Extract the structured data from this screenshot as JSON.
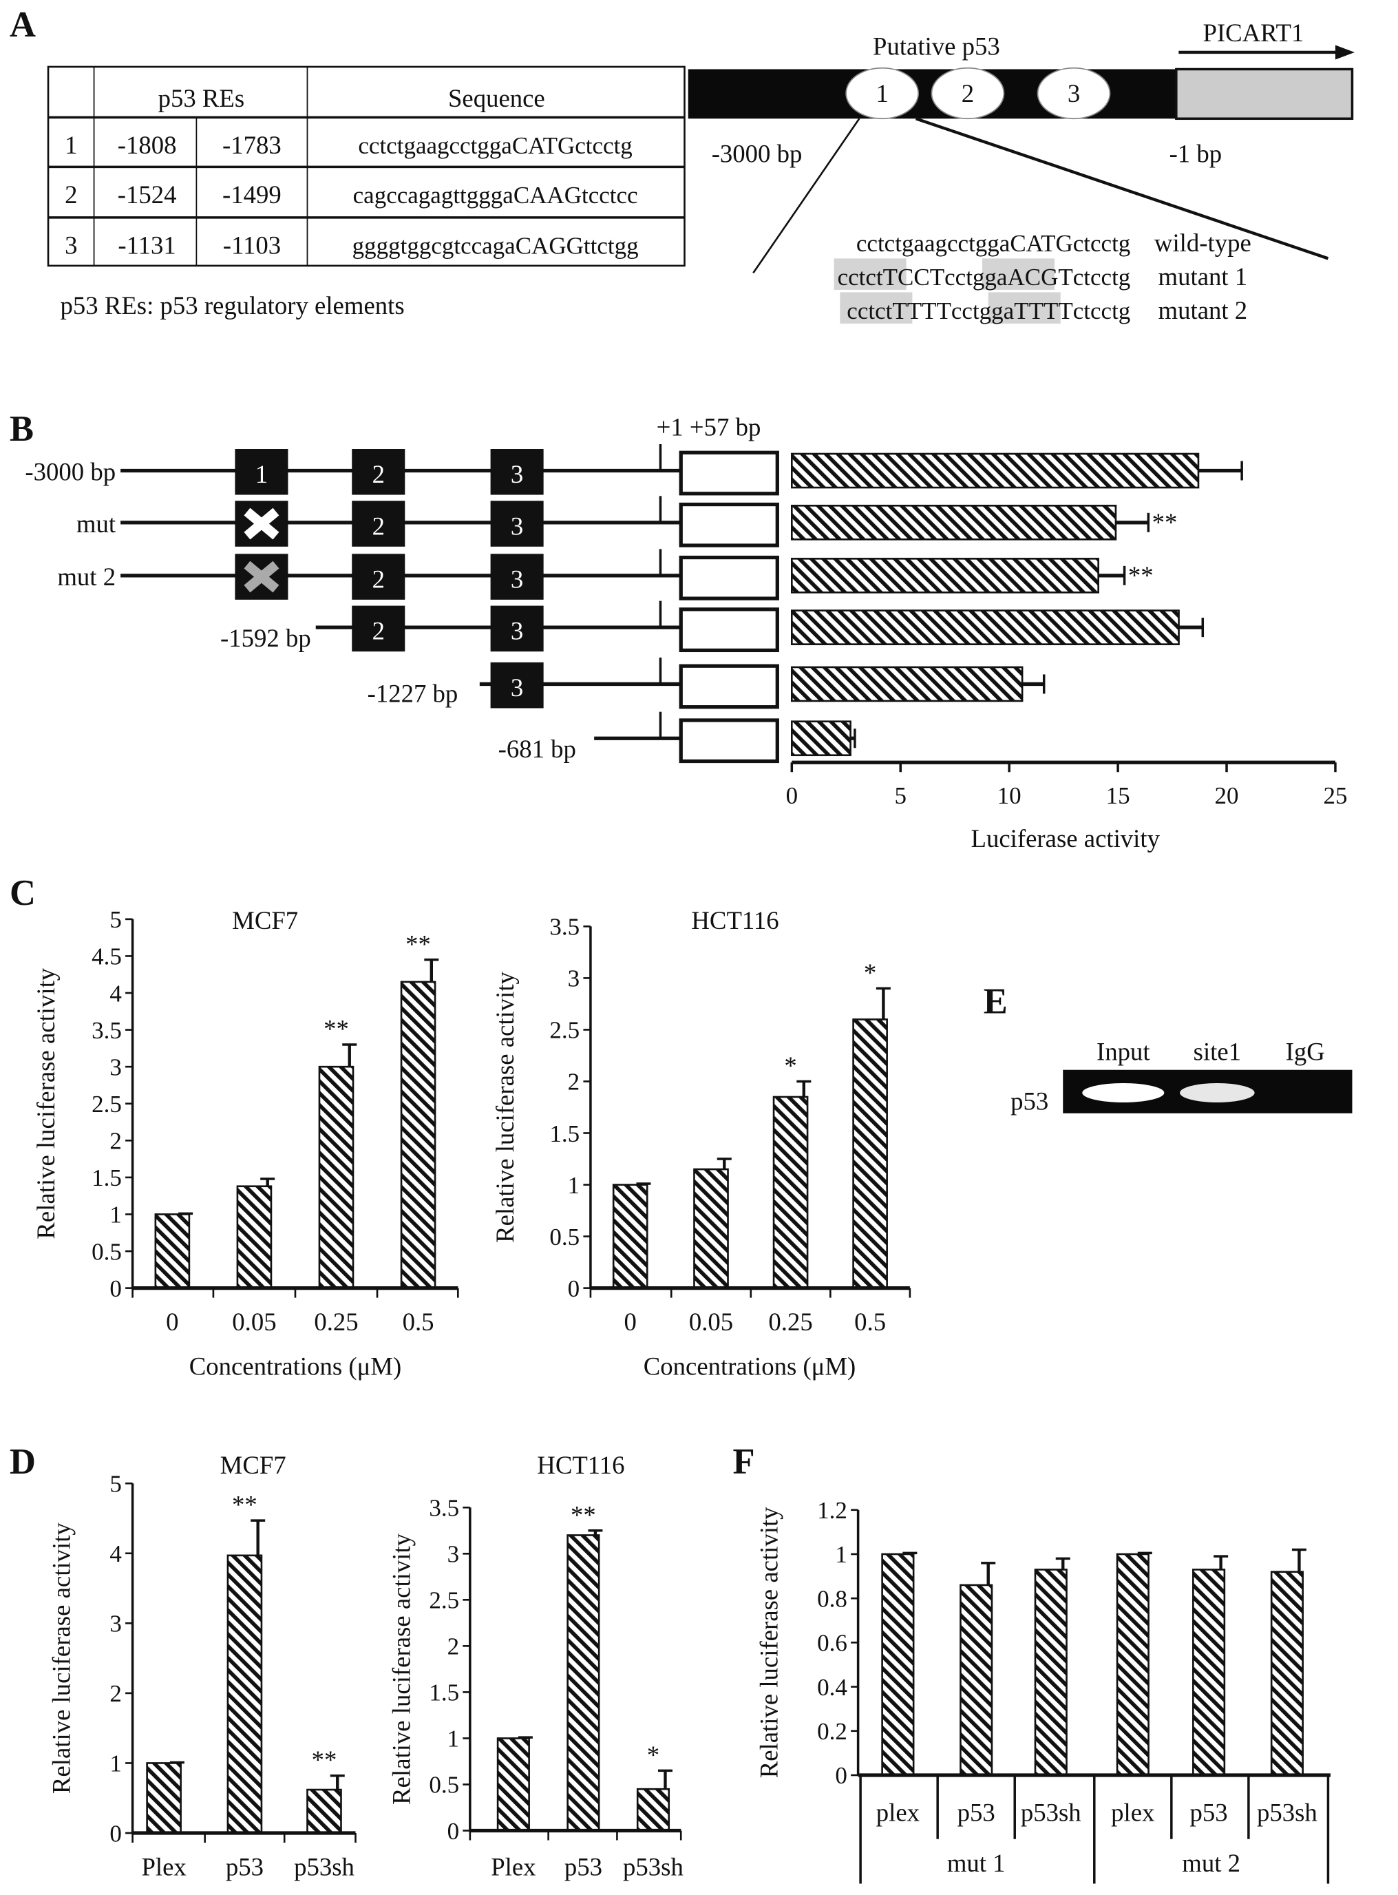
{
  "panel_letters": {
    "a": "A",
    "b": "B",
    "c": "C",
    "d": "D",
    "e": "E",
    "f": "F"
  },
  "panel_a": {
    "table": {
      "header": [
        "",
        "p53 REs",
        "Sequence"
      ],
      "rows": [
        {
          "id": "1",
          "start": "-1808",
          "end": "-1783",
          "sequence": "cctctgaagcctggaCATGctcctg"
        },
        {
          "id": "2",
          "start": "-1524",
          "end": "-1499",
          "sequence": "cagccagagttgggaCAAGtcctcc"
        },
        {
          "id": "3",
          "start": "-1131",
          "end": "-1103",
          "sequence": "ggggtggcgtccagaCAGGttctgg"
        }
      ],
      "footnote": "p53 REs: p53 regulatory elements"
    },
    "promoter": {
      "title": "Putative p53",
      "gene": "PICART1",
      "sites": [
        "1",
        "2",
        "3"
      ],
      "left_label": "-3000 bp",
      "right_label": "-1 bp"
    },
    "site1_variants": [
      {
        "label": "wild-type",
        "segments": [
          {
            "t": "cctctgaagcctggaCATGctcctg",
            "hl": false
          }
        ]
      },
      {
        "label": "mutant 1",
        "segments": [
          {
            "t": "cctct",
            "hl": false
          },
          {
            "t": "TCCT",
            "hl": true
          },
          {
            "t": "cctgga",
            "hl": false
          },
          {
            "t": "ACGT",
            "hl": true
          },
          {
            "t": "ctcctg",
            "hl": false
          }
        ]
      },
      {
        "label": "mutant 2",
        "segments": [
          {
            "t": "cctct",
            "hl": false
          },
          {
            "t": "TTTT",
            "hl": true
          },
          {
            "t": "cctgga",
            "hl": false
          },
          {
            "t": "TTTT",
            "hl": true
          },
          {
            "t": "ctcctg",
            "hl": false
          }
        ]
      }
    ]
  },
  "panel_b": {
    "tss_label": "+1 +57 bp",
    "constructs": [
      {
        "label": "-3000 bp",
        "sites": [
          "1",
          "2",
          "3"
        ],
        "site1": "normal"
      },
      {
        "label": "mut",
        "sites": [
          "1",
          "2",
          "3"
        ],
        "site1": "mut-white"
      },
      {
        "label": "mut 2",
        "sites": [
          "1",
          "2",
          "3"
        ],
        "site1": "mut-gray"
      },
      {
        "label": "-1592 bp",
        "sites": [
          "2",
          "3"
        ],
        "site1": "none"
      },
      {
        "label": "-1227 bp",
        "sites": [
          "3"
        ],
        "site1": "none"
      },
      {
        "label": "-681 bp",
        "sites": [],
        "site1": "none"
      }
    ]
  },
  "panel_e": {
    "lanes": [
      "Input",
      "site1",
      "IgG"
    ],
    "row_label": "p53",
    "band_intensity": [
      1.0,
      0.9,
      0.0
    ]
  },
  "colors": {
    "ink": "#111111",
    "gel": "#0a0a0a",
    "highlight": "#d4d4d4",
    "promoter_gray": "#cccccc"
  },
  "chart_data": [
    {
      "id": "B",
      "type": "bar",
      "orientation": "horizontal",
      "categories": [
        "-3000 bp",
        "mut",
        "mut 2",
        "-1592 bp",
        "-1227 bp",
        "-681 bp"
      ],
      "values": [
        18.7,
        14.9,
        14.1,
        17.8,
        10.6,
        2.7
      ],
      "errors": [
        2.0,
        1.5,
        1.2,
        1.1,
        1.0,
        0.2
      ],
      "significance": [
        "",
        "**",
        "**",
        "",
        "",
        ""
      ],
      "xlabel": "Luciferase activity",
      "xlim": [
        0,
        25
      ],
      "ticks": [
        "0",
        "5",
        "10",
        "15",
        "20",
        "25"
      ]
    },
    {
      "id": "C-MCF7",
      "type": "bar",
      "title": "MCF7",
      "categories": [
        "0",
        "0.05",
        "0.25",
        "0.5"
      ],
      "values": [
        1.0,
        1.38,
        3.0,
        4.15
      ],
      "errors": [
        0.01,
        0.1,
        0.3,
        0.3
      ],
      "significance": [
        "",
        "",
        "**",
        "**"
      ],
      "xlabel": "Concentrations (μM)",
      "ylabel": "Relative luciferase activity",
      "ylim": [
        0,
        5
      ],
      "ticks": [
        "0",
        "0.5",
        "1",
        "1.5",
        "2",
        "2.5",
        "3",
        "3.5",
        "4",
        "4.5",
        "5"
      ]
    },
    {
      "id": "C-HCT116",
      "type": "bar",
      "title": "HCT116",
      "categories": [
        "0",
        "0.05",
        "0.25",
        "0.5"
      ],
      "values": [
        1.0,
        1.15,
        1.85,
        2.6
      ],
      "errors": [
        0.01,
        0.1,
        0.15,
        0.3
      ],
      "significance": [
        "",
        "",
        "*",
        "*"
      ],
      "xlabel": "Concentrations (μM)",
      "ylabel": "Relative luciferase activity",
      "ylim": [
        0,
        3.5
      ],
      "ticks": [
        "0",
        "0.5",
        "1",
        "1.5",
        "2",
        "2.5",
        "3",
        "3.5"
      ]
    },
    {
      "id": "D-MCF7",
      "type": "bar",
      "title": "MCF7",
      "categories": [
        "Plex",
        "p53",
        "p53sh"
      ],
      "values": [
        1.0,
        3.97,
        0.62
      ],
      "errors": [
        0.01,
        0.5,
        0.2
      ],
      "significance": [
        "",
        "**",
        "**"
      ],
      "xlabel": "",
      "ylabel": "Relative luciferase activity",
      "ylim": [
        0,
        5
      ],
      "ticks": [
        "0",
        "1",
        "2",
        "3",
        "4",
        "5"
      ]
    },
    {
      "id": "D-HCT116",
      "type": "bar",
      "title": "HCT116",
      "categories": [
        "Plex",
        "p53",
        "p53sh"
      ],
      "values": [
        1.0,
        3.2,
        0.45
      ],
      "errors": [
        0.01,
        0.05,
        0.2
      ],
      "significance": [
        "",
        "**",
        "*"
      ],
      "xlabel": "",
      "ylabel": "Relative luciferase activity",
      "ylim": [
        0,
        3.5
      ],
      "ticks": [
        "0",
        "0.5",
        "1",
        "1.5",
        "2",
        "2.5",
        "3",
        "3.5"
      ]
    },
    {
      "id": "F",
      "type": "bar",
      "title": "",
      "categories": [
        "plex",
        "p53",
        "p53sh",
        "plex",
        "p53",
        "p53sh"
      ],
      "groups": [
        "mut 1",
        "mut 2"
      ],
      "values": [
        1.0,
        0.86,
        0.93,
        1.0,
        0.93,
        0.92
      ],
      "errors": [
        0.005,
        0.1,
        0.05,
        0.005,
        0.06,
        0.1
      ],
      "significance": [
        "",
        "",
        "",
        "",
        "",
        ""
      ],
      "xlabel": "",
      "ylabel": "Relative luciferase activity",
      "ylim": [
        0,
        1.2
      ],
      "ticks": [
        "0",
        "0.2",
        "0.4",
        "0.6",
        "0.8",
        "1",
        "1.2"
      ]
    }
  ]
}
